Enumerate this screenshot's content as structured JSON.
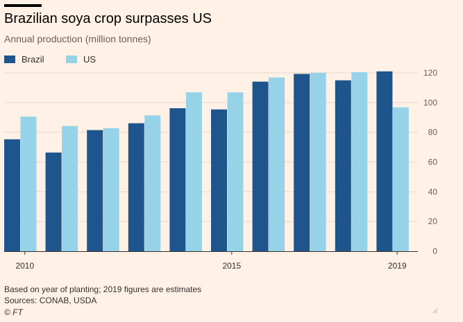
{
  "header": {
    "title": "Brazilian soya crop surpasses US",
    "subtitle": "Annual production (million tonnes)"
  },
  "footer": {
    "note": "Based on year of planting; 2019 figures are estimates",
    "sources": "Sources: CONAB, USDA",
    "credit": "© FT"
  },
  "colors": {
    "background": "#FFF1E5",
    "brazil": "#1E558C",
    "us": "#96D2E8",
    "grid": "#E6D9CE"
  },
  "chart_data": {
    "type": "bar",
    "categories": [
      "2010",
      "2011",
      "2012",
      "2013",
      "2014",
      "2015",
      "2016",
      "2017",
      "2018",
      "2019"
    ],
    "x_tick_labels": [
      "2010",
      "2015",
      "2019"
    ],
    "series": [
      {
        "name": "Brazil",
        "color": "#1E558C",
        "values": [
          75.3,
          66.4,
          81.5,
          86.1,
          96.2,
          95.4,
          114.1,
          119.3,
          115.0,
          121.0
        ]
      },
      {
        "name": "US",
        "color": "#96D2E8",
        "values": [
          90.6,
          84.2,
          82.8,
          91.4,
          106.9,
          106.9,
          116.9,
          120.1,
          120.5,
          96.8
        ]
      }
    ],
    "yticks": [
      0,
      20,
      40,
      60,
      80,
      100,
      120
    ],
    "ylim": [
      0,
      120
    ],
    "y_axis_side": "right",
    "grid": true,
    "legend_position": "top-left"
  }
}
